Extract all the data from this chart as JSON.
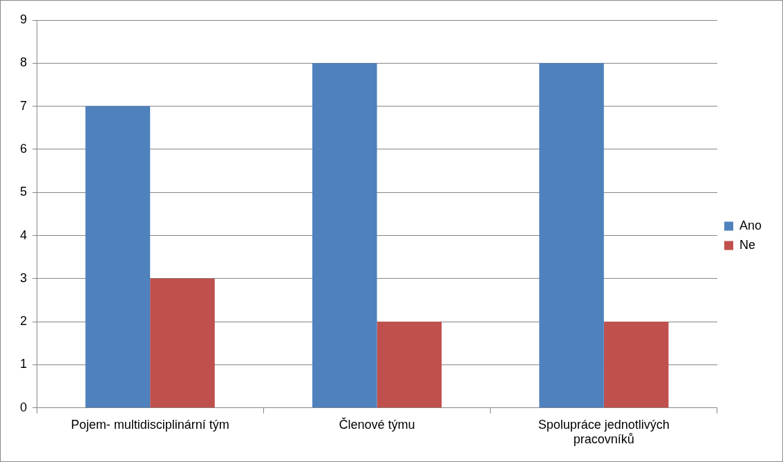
{
  "chart_data": {
    "type": "bar",
    "categories": [
      "Pojem- multidisciplinární tým",
      "Členové týmu",
      "Spolupráce jednotlivých pracovníků"
    ],
    "series": [
      {
        "name": "Ano",
        "color": "#4f81bd",
        "values": [
          7,
          8,
          8
        ]
      },
      {
        "name": "Ne",
        "color": "#c0504d",
        "values": [
          3,
          2,
          2
        ]
      }
    ],
    "ylim": [
      0,
      9
    ],
    "yticks": [
      0,
      1,
      2,
      3,
      4,
      5,
      6,
      7,
      8,
      9
    ],
    "grid": "y",
    "legend": "right"
  }
}
